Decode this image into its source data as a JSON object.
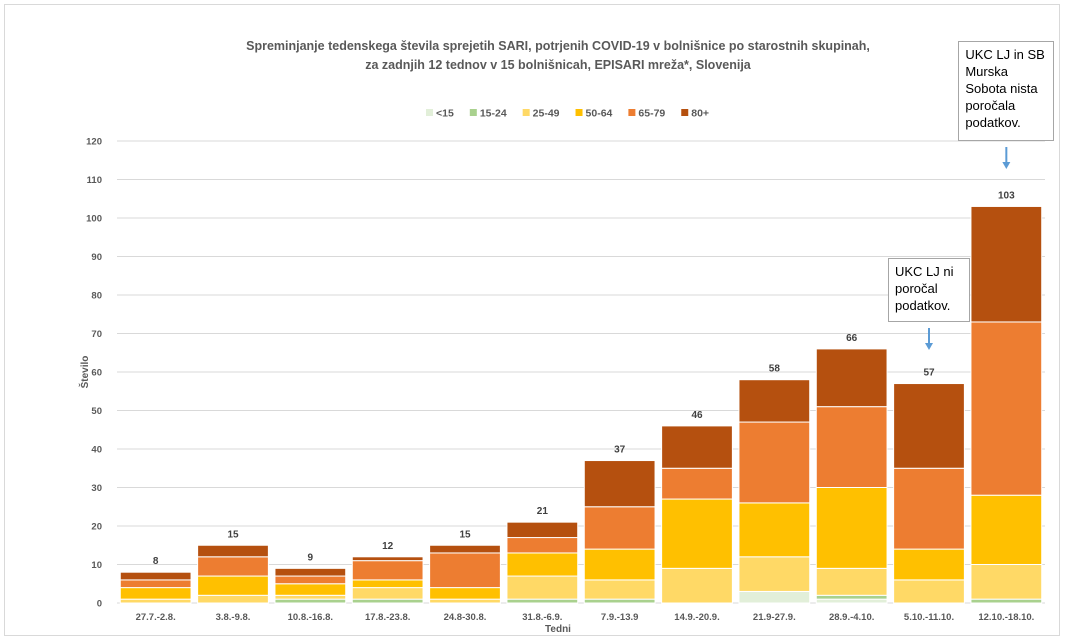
{
  "chart_data": {
    "type": "bar",
    "stacked": true,
    "title_line1": "Spreminjanje tedenskega števila sprejetih SARI, potrjenih COVID-19 v bolnišnice po starostnih skupinah,",
    "title_line2": "za zadnjih 12 tednov v 15 bolnišnicah, EPISARI mreža*, Slovenija",
    "xlabel": "Tedni",
    "ylabel": "Število",
    "ylim": [
      0,
      120
    ],
    "yticks": [
      0,
      10,
      20,
      30,
      40,
      50,
      60,
      70,
      80,
      90,
      100,
      110,
      120
    ],
    "grid": true,
    "legend_position": "top",
    "categories": [
      "27.7.-2.8.",
      "3.8.-9.8.",
      "10.8.-16.8.",
      "17.8.-23.8.",
      "24.8-30.8.",
      "31.8.-6.9.",
      "7.9.-13.9",
      "14.9.-20.9.",
      "21.9-27.9.",
      "28.9.-4.10.",
      "5.10.-11.10.",
      "12.10.-18.10."
    ],
    "totals": [
      8,
      15,
      9,
      12,
      15,
      21,
      37,
      46,
      58,
      66,
      57,
      103
    ],
    "series": [
      {
        "name": "<15",
        "color": "#e2efd9",
        "values": [
          0,
          0,
          0,
          0,
          0,
          0,
          0,
          0,
          3,
          1,
          0,
          0
        ]
      },
      {
        "name": "15-24",
        "color": "#a9d18e",
        "values": [
          0,
          0,
          1,
          1,
          0,
          1,
          1,
          0,
          0,
          1,
          0,
          1
        ]
      },
      {
        "name": "25-49",
        "color": "#ffd966",
        "values": [
          1,
          2,
          1,
          3,
          1,
          6,
          5,
          9,
          9,
          7,
          6,
          9
        ]
      },
      {
        "name": "50-64",
        "color": "#ffc000",
        "values": [
          3,
          5,
          3,
          2,
          3,
          6,
          8,
          18,
          14,
          21,
          8,
          18
        ]
      },
      {
        "name": "65-79",
        "color": "#ed7d31",
        "values": [
          2,
          5,
          2,
          5,
          9,
          4,
          11,
          8,
          21,
          21,
          21,
          45
        ]
      },
      {
        "name": "80+",
        "color": "#b5500f",
        "values": [
          2,
          3,
          2,
          1,
          2,
          4,
          12,
          11,
          11,
          15,
          22,
          30
        ]
      }
    ],
    "annotations": [
      {
        "category_index": 10,
        "text": "UKC LJ ni\nporočal\npodatkov."
      },
      {
        "category_index": 11,
        "text": "UKC LJ in SB\nMurska\nSobota nista\nporočala\npodatkov."
      }
    ]
  }
}
